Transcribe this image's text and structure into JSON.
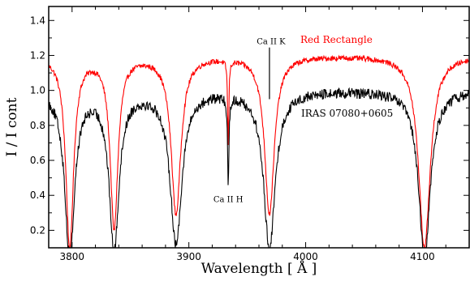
{
  "chart_data": {
    "type": "line",
    "xlabel": "Wavelength [ Å ]",
    "ylabel": "I / I cont",
    "xlim": [
      3780,
      4140
    ],
    "ylim": [
      0.1,
      1.48
    ],
    "xticks": [
      3800,
      3900,
      4000,
      4100
    ],
    "yticks": [
      0.2,
      0.4,
      0.6,
      0.8,
      1.0,
      1.2,
      1.4
    ],
    "grid": false,
    "series": [
      {
        "name": "Red Rectangle",
        "color": "#ff0000",
        "continuum": 1.2,
        "noise": 0.015,
        "lines": [
          {
            "center": 3798,
            "depth": 1.1,
            "width": 4
          },
          {
            "center": 3836,
            "depth": 0.98,
            "width": 4
          },
          {
            "center": 3889,
            "depth": 0.9,
            "width": 5
          },
          {
            "center": 3933.7,
            "depth": 0.5,
            "width": 0.6
          },
          {
            "center": 3969,
            "depth": 0.9,
            "width": 5
          },
          {
            "center": 4101.7,
            "depth": 1.1,
            "width": 6
          }
        ]
      },
      {
        "name": "IRAS 07080+0605",
        "color": "#000000",
        "continuum": 1.0,
        "noise": 0.03,
        "lines": [
          {
            "center": 3798,
            "depth": 0.95,
            "width": 5
          },
          {
            "center": 3836,
            "depth": 0.9,
            "width": 5
          },
          {
            "center": 3889,
            "depth": 0.87,
            "width": 6
          },
          {
            "center": 3933.7,
            "depth": 0.5,
            "width": 0.7
          },
          {
            "center": 3969,
            "depth": 0.9,
            "width": 6
          },
          {
            "center": 4101.7,
            "depth": 0.95,
            "width": 6
          }
        ]
      }
    ],
    "annotations": [
      {
        "text": "Ca II H",
        "x": 3933.7,
        "y": 0.38
      },
      {
        "text": "Ca II K",
        "x": 3969,
        "y": 1.25
      }
    ]
  }
}
